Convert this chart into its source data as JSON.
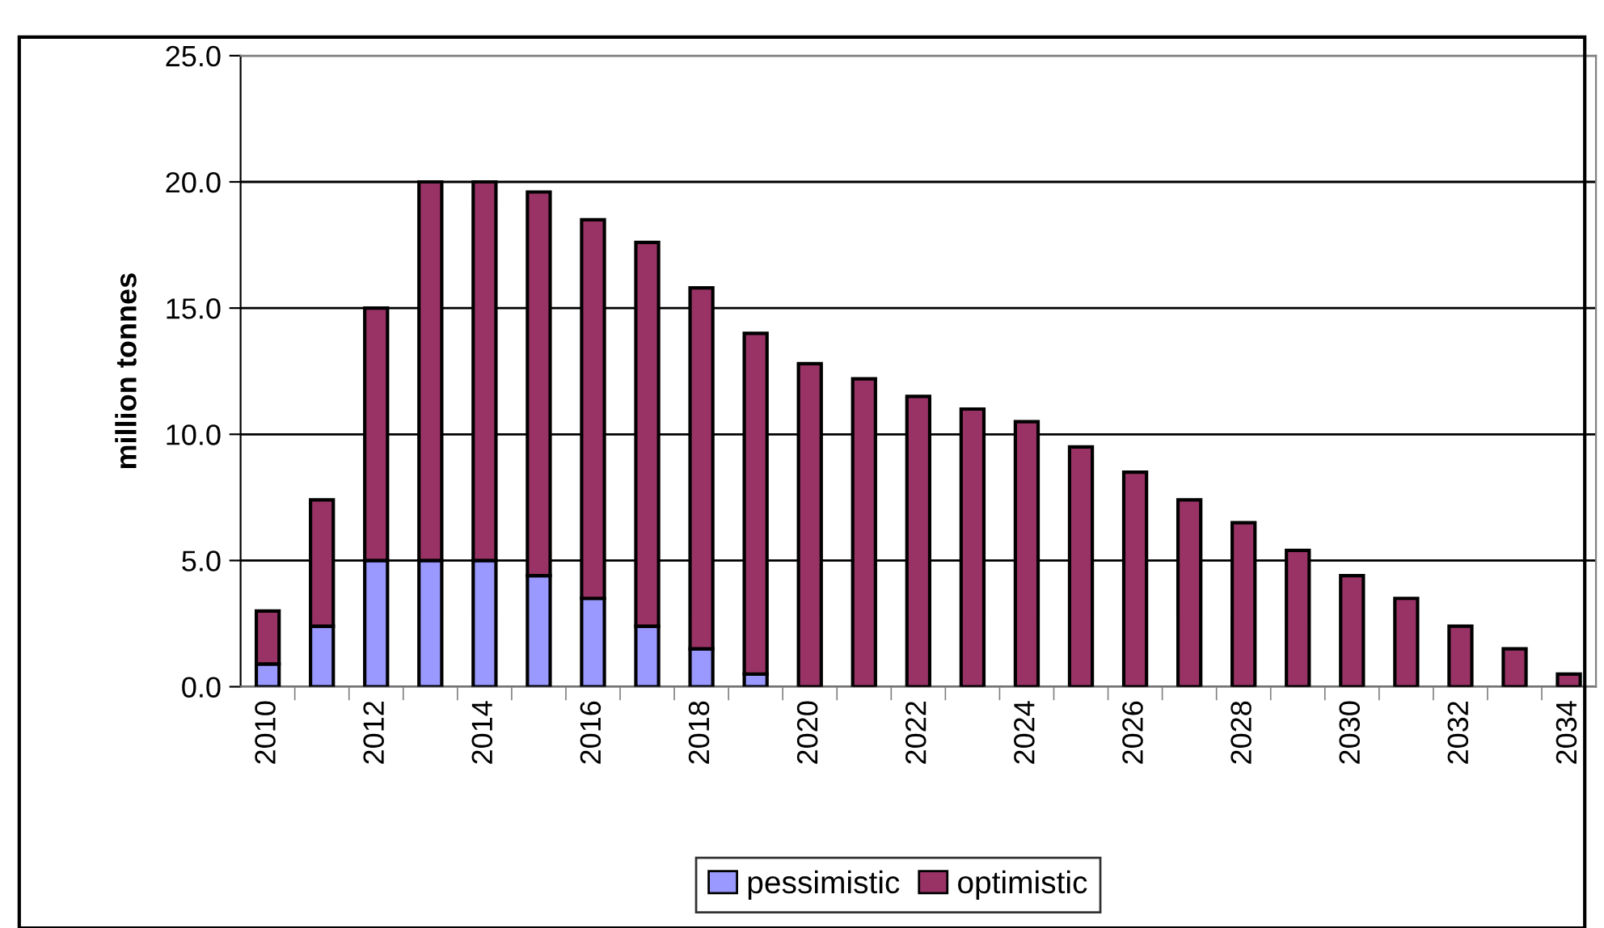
{
  "chart_data": {
    "type": "bar",
    "ylabel": "million tonnes",
    "stacked": true,
    "grid": "y",
    "legend": "bottom",
    "categories": [
      "2010",
      null,
      "2012",
      null,
      "2014",
      null,
      "2016",
      null,
      "2018",
      null,
      "2020",
      null,
      "2022",
      null,
      "2024",
      null,
      "2026",
      null,
      "2028",
      null,
      "2030",
      null,
      "2032",
      null,
      "2034"
    ],
    "series": [
      {
        "name": "pessimistic",
        "color": "#9999ff",
        "values": [
          0.9,
          2.4,
          5.0,
          5.0,
          5.0,
          4.4,
          3.5,
          2.4,
          1.5,
          0.5,
          0,
          0,
          0,
          0,
          0,
          0,
          0,
          0,
          0,
          0,
          0,
          0,
          0,
          0,
          0
        ]
      },
      {
        "name": "optimistic",
        "color": "#993366",
        "values": [
          2.1,
          5.0,
          10.0,
          15.0,
          15.0,
          15.2,
          15.0,
          15.2,
          14.3,
          13.5,
          12.8,
          12.2,
          11.5,
          11.0,
          10.5,
          9.5,
          8.5,
          7.4,
          6.5,
          5.4,
          4.4,
          3.5,
          2.4,
          1.5,
          0.5
        ]
      }
    ],
    "ylim": [
      0,
      25
    ],
    "yticks": [
      {
        "value": 0,
        "label": "0.0"
      },
      {
        "value": 5,
        "label": "5.0"
      },
      {
        "value": 10,
        "label": "10.0"
      },
      {
        "value": 15,
        "label": "15.0"
      },
      {
        "value": 20,
        "label": "20.0"
      },
      {
        "value": 25,
        "label": "25.0"
      }
    ]
  }
}
